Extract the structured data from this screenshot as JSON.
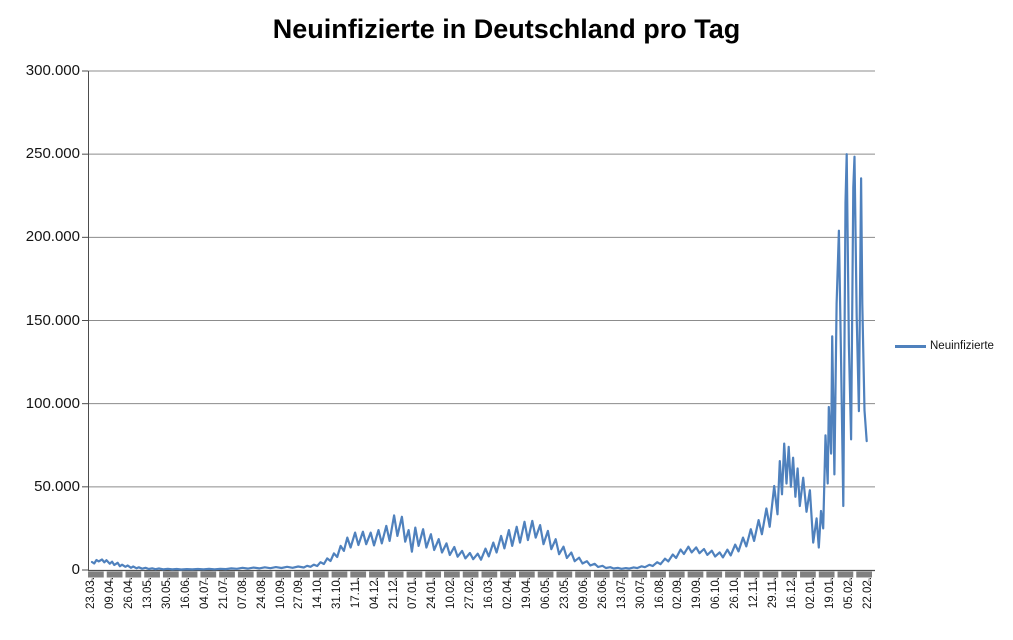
{
  "colors": {
    "line": "#4F81BD",
    "gridline": "#8C8C8C",
    "axis": "#4D4D4D",
    "tick_bar": "#808080",
    "text": "#141414",
    "title_text": "#000000",
    "background": "#FFFFFF"
  },
  "legend": {
    "label": "Neuinfizierte",
    "position": "right"
  },
  "chart_data": {
    "type": "line",
    "title": "Neuinfizierte in Deutschland pro Tag",
    "xlabel": "",
    "ylabel": "",
    "ylim": [
      0,
      300000
    ],
    "y_tick_interval": 50000,
    "y_tick_labels": [
      "300.000",
      "250.000",
      "200.000",
      "150.000",
      "100.000",
      "50.000",
      "0"
    ],
    "x_tick_labels": [
      "23.03.",
      "09.04.",
      "26.04.",
      "13.05.",
      "30.05.",
      "16.06.",
      "04.07.",
      "21.07.",
      "07.08.",
      "24.08.",
      "10.09.",
      "27.09.",
      "14.10.",
      "31.10.",
      "17.11.",
      "04.12.",
      "21.12.",
      "07.01.",
      "24.01.",
      "10.02.",
      "27.02.",
      "16.03.",
      "02.04.",
      "19.04.",
      "06.05.",
      "23.05.",
      "09.06.",
      "26.06.",
      "13.07.",
      "30.07.",
      "16.08.",
      "02.09.",
      "19.09.",
      "06.10.",
      "26.10.",
      "12.11.",
      "29.11.",
      "16.12.",
      "02.01.",
      "19.01.",
      "05.02.",
      "22.02."
    ],
    "x_label_interval_days": 17,
    "x_range_days": [
      0,
      699
    ],
    "grid": "horizontal",
    "legend_position": "right",
    "series": [
      {
        "name": "Neuinfizierte",
        "color": "#4F81BD",
        "points_day_value": [
          [
            0,
            4800
          ],
          [
            2,
            3900
          ],
          [
            4,
            6000
          ],
          [
            6,
            5200
          ],
          [
            9,
            6300
          ],
          [
            11,
            4600
          ],
          [
            13,
            5900
          ],
          [
            16,
            3800
          ],
          [
            18,
            5000
          ],
          [
            20,
            3000
          ],
          [
            23,
            4300
          ],
          [
            25,
            2300
          ],
          [
            27,
            3200
          ],
          [
            30,
            1900
          ],
          [
            32,
            2700
          ],
          [
            35,
            1300
          ],
          [
            37,
            2100
          ],
          [
            40,
            1000
          ],
          [
            42,
            1600
          ],
          [
            45,
            800
          ],
          [
            48,
            1300
          ],
          [
            51,
            600
          ],
          [
            54,
            1000
          ],
          [
            57,
            500
          ],
          [
            60,
            900
          ],
          [
            64,
            400
          ],
          [
            68,
            700
          ],
          [
            72,
            350
          ],
          [
            76,
            600
          ],
          [
            80,
            300
          ],
          [
            85,
            550
          ],
          [
            90,
            350
          ],
          [
            95,
            600
          ],
          [
            100,
            400
          ],
          [
            105,
            650
          ],
          [
            110,
            450
          ],
          [
            115,
            750
          ],
          [
            120,
            550
          ],
          [
            125,
            950
          ],
          [
            130,
            700
          ],
          [
            135,
            1300
          ],
          [
            140,
            850
          ],
          [
            145,
            1450
          ],
          [
            150,
            950
          ],
          [
            155,
            1600
          ],
          [
            160,
            1100
          ],
          [
            165,
            1750
          ],
          [
            170,
            1200
          ],
          [
            175,
            1900
          ],
          [
            180,
            1300
          ],
          [
            185,
            2100
          ],
          [
            190,
            1500
          ],
          [
            193,
            2500
          ],
          [
            196,
            1900
          ],
          [
            199,
            3200
          ],
          [
            202,
            2400
          ],
          [
            205,
            4700
          ],
          [
            208,
            3600
          ],
          [
            211,
            7000
          ],
          [
            214,
            5400
          ],
          [
            217,
            10000
          ],
          [
            220,
            7800
          ],
          [
            223,
            14500
          ],
          [
            226,
            11500
          ],
          [
            229,
            19500
          ],
          [
            232,
            13500
          ],
          [
            236,
            22500
          ],
          [
            239,
            15000
          ],
          [
            243,
            23000
          ],
          [
            246,
            15500
          ],
          [
            250,
            22500
          ],
          [
            253,
            14800
          ],
          [
            257,
            24000
          ],
          [
            260,
            16000
          ],
          [
            264,
            26500
          ],
          [
            267,
            17500
          ],
          [
            271,
            32800
          ],
          [
            274,
            20500
          ],
          [
            278,
            32000
          ],
          [
            281,
            17000
          ],
          [
            284,
            24000
          ],
          [
            287,
            11000
          ],
          [
            290,
            25500
          ],
          [
            293,
            14500
          ],
          [
            297,
            24500
          ],
          [
            300,
            13500
          ],
          [
            304,
            21500
          ],
          [
            307,
            12000
          ],
          [
            311,
            18500
          ],
          [
            314,
            10500
          ],
          [
            318,
            16000
          ],
          [
            321,
            9000
          ],
          [
            325,
            13800
          ],
          [
            328,
            8000
          ],
          [
            332,
            11500
          ],
          [
            335,
            7000
          ],
          [
            339,
            10200
          ],
          [
            342,
            6500
          ],
          [
            346,
            9800
          ],
          [
            349,
            6200
          ],
          [
            353,
            12800
          ],
          [
            356,
            8200
          ],
          [
            360,
            16500
          ],
          [
            363,
            10500
          ],
          [
            367,
            20500
          ],
          [
            370,
            13000
          ],
          [
            374,
            24000
          ],
          [
            377,
            14500
          ],
          [
            381,
            26000
          ],
          [
            384,
            16500
          ],
          [
            388,
            29000
          ],
          [
            391,
            18000
          ],
          [
            395,
            29500
          ],
          [
            398,
            19500
          ],
          [
            402,
            27000
          ],
          [
            405,
            15500
          ],
          [
            409,
            23500
          ],
          [
            412,
            12500
          ],
          [
            416,
            18500
          ],
          [
            419,
            9500
          ],
          [
            423,
            14000
          ],
          [
            426,
            7200
          ],
          [
            430,
            10500
          ],
          [
            433,
            5300
          ],
          [
            437,
            7400
          ],
          [
            440,
            3900
          ],
          [
            444,
            5300
          ],
          [
            447,
            2700
          ],
          [
            451,
            3700
          ],
          [
            454,
            1800
          ],
          [
            458,
            2500
          ],
          [
            461,
            1200
          ],
          [
            465,
            1700
          ],
          [
            468,
            900
          ],
          [
            472,
            1250
          ],
          [
            475,
            700
          ],
          [
            479,
            1150
          ],
          [
            482,
            850
          ],
          [
            486,
            1550
          ],
          [
            489,
            1150
          ],
          [
            493,
            2200
          ],
          [
            496,
            1700
          ],
          [
            500,
            3100
          ],
          [
            503,
            2400
          ],
          [
            507,
            4700
          ],
          [
            510,
            3500
          ],
          [
            514,
            6800
          ],
          [
            517,
            5200
          ],
          [
            521,
            9300
          ],
          [
            524,
            7200
          ],
          [
            528,
            12300
          ],
          [
            531,
            9600
          ],
          [
            535,
            14000
          ],
          [
            538,
            10600
          ],
          [
            542,
            13600
          ],
          [
            545,
            10100
          ],
          [
            549,
            12600
          ],
          [
            552,
            9100
          ],
          [
            556,
            11600
          ],
          [
            559,
            8100
          ],
          [
            563,
            10600
          ],
          [
            566,
            7600
          ],
          [
            570,
            12200
          ],
          [
            573,
            8800
          ],
          [
            577,
            15300
          ],
          [
            580,
            11200
          ],
          [
            584,
            19500
          ],
          [
            587,
            14200
          ],
          [
            591,
            24500
          ],
          [
            594,
            17500
          ],
          [
            598,
            30000
          ],
          [
            601,
            21500
          ],
          [
            605,
            37000
          ],
          [
            608,
            26000
          ],
          [
            612,
            50500
          ],
          [
            615,
            33500
          ],
          [
            617,
            65500
          ],
          [
            619,
            45500
          ],
          [
            621,
            76000
          ],
          [
            623,
            52000
          ],
          [
            625,
            74000
          ],
          [
            627,
            50000
          ],
          [
            629,
            67500
          ],
          [
            631,
            44000
          ],
          [
            633,
            61000
          ],
          [
            635,
            38500
          ],
          [
            638,
            55500
          ],
          [
            641,
            35000
          ],
          [
            644,
            48000
          ],
          [
            647,
            16500
          ],
          [
            650,
            31000
          ],
          [
            652,
            13500
          ],
          [
            654,
            35500
          ],
          [
            656,
            25000
          ],
          [
            658,
            81000
          ],
          [
            660,
            52000
          ],
          [
            661,
            98000
          ],
          [
            663,
            70000
          ],
          [
            664,
            140500
          ],
          [
            666,
            57500
          ],
          [
            668,
            160000
          ],
          [
            670,
            204000
          ],
          [
            672,
            125000
          ],
          [
            674,
            38500
          ],
          [
            676,
            221000
          ],
          [
            677,
            250000
          ],
          [
            679,
            135000
          ],
          [
            681,
            78500
          ],
          [
            683,
            230000
          ],
          [
            684,
            248500
          ],
          [
            686,
            152000
          ],
          [
            688,
            95500
          ],
          [
            690,
            235500
          ],
          [
            691,
            160000
          ],
          [
            693,
            96000
          ],
          [
            695,
            77500
          ]
        ]
      }
    ]
  }
}
